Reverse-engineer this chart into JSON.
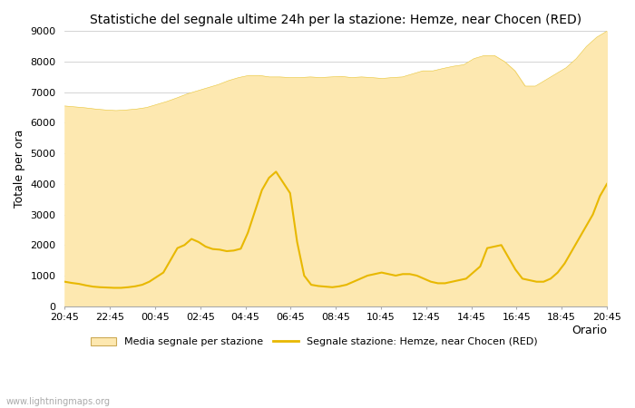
{
  "title": "Statistiche del segnale ultime 24h per la stazione: Hemze, near Chocen (RED)",
  "xlabel": "Orario",
  "ylabel": "Totale per ora",
  "watermark": "www.lightningmaps.org",
  "legend_area": "Media segnale per stazione",
  "legend_line": "Segnale stazione: Hemze, near Chocen (RED)",
  "area_color": "#fde8b0",
  "area_edge_color": "#e8c840",
  "line_color": "#e8b800",
  "ylim": [
    0,
    9000
  ],
  "yticks": [
    0,
    1000,
    2000,
    3000,
    4000,
    5000,
    6000,
    7000,
    8000,
    9000
  ],
  "xtick_labels": [
    "20:45",
    "22:45",
    "00:45",
    "02:45",
    "04:45",
    "06:45",
    "08:45",
    "10:45",
    "12:45",
    "14:45",
    "16:45",
    "18:45",
    "20:45"
  ],
  "area_values": [
    6550,
    6520,
    6490,
    6450,
    6420,
    6400,
    6420,
    6450,
    6500,
    6600,
    6700,
    6820,
    6950,
    7050,
    7150,
    7250,
    7380,
    7480,
    7550,
    7550,
    7500,
    7500,
    7480,
    7480,
    7500,
    7480,
    7500,
    7520,
    7480,
    7500,
    7480,
    7450,
    7480,
    7500,
    7600,
    7700,
    7700,
    7780,
    7850,
    7900,
    8100,
    8200,
    8200,
    8000,
    7700,
    7200,
    7200,
    7400,
    7600,
    7800,
    8100,
    8500,
    8800,
    9000
  ],
  "line_values": [
    800,
    760,
    730,
    680,
    640,
    620,
    610,
    600,
    600,
    620,
    650,
    700,
    800,
    950,
    1100,
    1500,
    1900,
    2000,
    2200,
    2100,
    1950,
    1870,
    1850,
    1800,
    1820,
    1880,
    2400,
    3100,
    3800,
    4200,
    4400,
    4050,
    3700,
    2100,
    1000,
    700,
    660,
    640,
    620,
    650,
    700,
    800,
    900,
    1000,
    1050,
    1100,
    1050,
    1000,
    1050,
    1050,
    1000,
    900,
    800,
    750,
    750,
    800,
    850,
    900,
    1100,
    1300,
    1900,
    1950,
    2000,
    1600,
    1200,
    900,
    850,
    800,
    800,
    900,
    1100,
    1400,
    1800,
    2200,
    2600,
    3000,
    3600,
    4000
  ]
}
